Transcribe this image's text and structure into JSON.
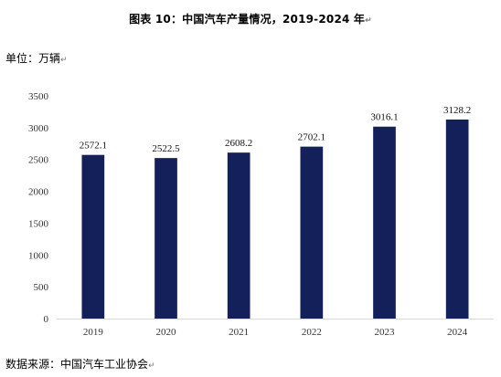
{
  "caption": {
    "title": "图表  10：中国汽车产量情况，2019-2024 年",
    "unit_label": "单位：万辆",
    "source": "数据来源：中国汽车工业协会",
    "para_mark": "↵"
  },
  "chart_data": {
    "type": "bar",
    "title": "图表  10：中国汽车产量情况，2019-2024 年",
    "xlabel": "",
    "ylabel": "单位：万辆",
    "categories": [
      "2019",
      "2020",
      "2021",
      "2022",
      "2023",
      "2024"
    ],
    "values": [
      2572.1,
      2522.5,
      2608.2,
      2702.1,
      3016.1,
      3128.2
    ],
    "data_labels": [
      "2572.1",
      "2522.5",
      "2608.2",
      "2702.1",
      "3016.1",
      "3128.2"
    ],
    "ylim": [
      0,
      3500
    ],
    "yticks": [
      0,
      500,
      1000,
      1500,
      2000,
      2500,
      3000,
      3500
    ],
    "grid": false,
    "legend": "none",
    "bar_color": "#14205a"
  }
}
